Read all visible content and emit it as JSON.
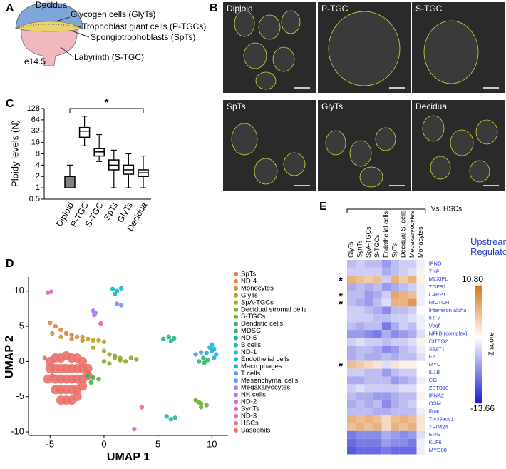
{
  "panel_labels": [
    "A",
    "B",
    "C",
    "D",
    "E"
  ],
  "diagram": {
    "labels": {
      "decidua": "Decidua",
      "glycogen": "Glycogen cells (GlyTs)",
      "giant": "Trophoblast giant cells (P-TGCs)",
      "spongio": "Spongiotrophoblasts (SpTs)",
      "labyrinth": "Labyrinth (S-TGC)",
      "stage": "e14.5"
    }
  },
  "micrographs": {
    "labels": [
      "Diploid",
      "P-TGC",
      "S-TGC",
      "SpTs",
      "GlyTs",
      "Decidua"
    ]
  },
  "chart_data": [
    {
      "type": "box",
      "ylabel": "Ploidy levels (N)",
      "categories": [
        "Diploid",
        "P-TGC",
        "S-TGC",
        "SpTs",
        "GlyTs",
        "Decidua"
      ],
      "whisker_low": [
        1,
        13,
        5,
        1,
        1,
        1
      ],
      "q1": [
        1,
        22,
        7,
        3,
        2.3,
        2
      ],
      "median": [
        2,
        32,
        9,
        4,
        3,
        2.5
      ],
      "q3": [
        2,
        40,
        11,
        5.5,
        4,
        3
      ],
      "whisker_high": [
        4,
        80,
        26,
        10,
        8,
        7
      ],
      "box_colors": [
        "#808080",
        "#ffffff",
        "#ffffff",
        "#ffffff",
        "#ffffff",
        "#ffffff"
      ],
      "ylim": [
        0.5,
        128
      ],
      "yticks": [
        0.5,
        1,
        2,
        4,
        8,
        16,
        32,
        64,
        128
      ],
      "log_scale": true,
      "annotation": "*"
    },
    {
      "type": "scatter",
      "xlabel": "UMAP 1",
      "ylabel": "UMAP 2",
      "xlim": [
        -7,
        11.5
      ],
      "ylim": [
        -10.5,
        12
      ],
      "xticks": [
        -5,
        0,
        5,
        10
      ],
      "yticks": [
        -10,
        -5,
        0,
        5,
        10
      ],
      "series": [
        {
          "name": "SpTs",
          "color": "#ea716b",
          "x": [
            -5,
            -4.5,
            -4,
            -3.5,
            -3,
            -2.5,
            -2,
            -5,
            -4.5,
            -4,
            -3.5,
            -3,
            -2.5,
            -2,
            -1.5,
            -5.2,
            -4.5,
            -4,
            -3.5,
            -3,
            -2.5,
            -2,
            -1.5,
            -4.5,
            -4,
            -3.5,
            -3,
            -2.5,
            -2,
            -4,
            -3.5,
            -3,
            -2.5
          ],
          "y": [
            0,
            0.5,
            0.5,
            0.8,
            0.5,
            0.5,
            0,
            -1,
            -1,
            -1,
            -1,
            -1,
            -1,
            -1,
            -1,
            -2.5,
            -2.5,
            -2.5,
            -2.5,
            -2.5,
            -2.5,
            -2.5,
            -2,
            -4,
            -4,
            -4,
            -4,
            -4,
            -3.5,
            -5.5,
            -5.5,
            -5.5,
            -5
          ]
        },
        {
          "name": "ND-4",
          "color": "#dc8438",
          "x": [
            -5,
            -4.5,
            -4,
            -3.5,
            -3,
            -2.5,
            -2
          ],
          "y": [
            5.5,
            5,
            4.5,
            4,
            3.8,
            3.5,
            3
          ]
        },
        {
          "name": "Monocytes",
          "color": "#cd952e",
          "x": [
            -4.8,
            -4,
            -3
          ],
          "y": [
            4,
            3.5,
            3.2
          ]
        },
        {
          "name": "GlyTs",
          "color": "#bb9f2a",
          "x": [
            -2,
            -1.5,
            -1,
            -0.5,
            0
          ],
          "y": [
            3.5,
            3.2,
            3,
            3,
            2.8
          ]
        },
        {
          "name": "SpA-TGCs",
          "color": "#a4a62a",
          "x": [
            -1,
            0,
            0.5,
            1,
            1.5
          ],
          "y": [
            2,
            1.5,
            1,
            0.8,
            0.5
          ]
        },
        {
          "name": "Decidual stromal cells",
          "color": "#8aab2e",
          "x": [
            0,
            0.5,
            1,
            1.5,
            2,
            2.5,
            3
          ],
          "y": [
            0,
            -0.3,
            0.5,
            0.2,
            0,
            0.5,
            0.3
          ]
        },
        {
          "name": "S-TGCs",
          "color": "#6bb031",
          "x": [
            8.5,
            9,
            9.5,
            9,
            8.8
          ],
          "y": [
            -5.5,
            -6,
            -6.2,
            -6.5,
            -5.8
          ]
        },
        {
          "name": "Dendritic cells",
          "color": "#40b54b",
          "x": [
            -1.5,
            -1,
            -0.5,
            -1.2
          ],
          "y": [
            -2,
            -2.3,
            -2.5,
            -3
          ]
        },
        {
          "name": "MDSC",
          "color": "#2db66e",
          "x": [
            8.8,
            9.2,
            9.6,
            9.3
          ],
          "y": [
            0,
            0.5,
            0.2,
            -0.2
          ]
        },
        {
          "name": "ND-5",
          "color": "#22b78b",
          "x": [
            5.5,
            6,
            6.5,
            6.2
          ],
          "y": [
            3.2,
            3.5,
            3.3,
            2.9
          ]
        },
        {
          "name": "B cells",
          "color": "#1fb9a4",
          "x": [
            5.8,
            6.2,
            6.6
          ],
          "y": [
            -7.8,
            -8.2,
            -8
          ]
        },
        {
          "name": "ND-1",
          "color": "#20b8bc",
          "x": [
            0.8,
            1.2,
            1.6,
            1
          ],
          "y": [
            10.3,
            10,
            10.4,
            9.6
          ]
        },
        {
          "name": "Endothelial cells",
          "color": "#1fb4d0",
          "x": [
            9.8,
            10,
            10.2
          ],
          "y": [
            2,
            2.4,
            1.8
          ]
        },
        {
          "name": "Macrophages",
          "color": "#2aa9e1",
          "x": [
            9.5,
            10,
            10.4,
            10.2
          ],
          "y": [
            1.2,
            1.5,
            1,
            0.5
          ]
        },
        {
          "name": "T cells",
          "color": "#4c9eea",
          "x": [
            8.5,
            9
          ],
          "y": [
            1,
            1.3
          ]
        },
        {
          "name": "Mesenchymal cells",
          "color": "#7e8ff0",
          "x": [
            1.2,
            1.6
          ],
          "y": [
            8.2,
            8
          ]
        },
        {
          "name": "Megakaryocytes",
          "color": "#a37ef2",
          "x": [
            -1,
            -0.8
          ],
          "y": [
            7.2,
            6.9
          ]
        },
        {
          "name": "NK cells",
          "color": "#c26ee8",
          "x": [
            -0.9
          ],
          "y": [
            6.6
          ]
        },
        {
          "name": "ND-2",
          "color": "#d964d6",
          "x": [
            -5.2,
            -4.9
          ],
          "y": [
            9.8,
            9.9
          ]
        },
        {
          "name": "SynTs",
          "color": "#e85fbd",
          "x": [
            2.8
          ],
          "y": [
            -9.6
          ]
        },
        {
          "name": "ND-3",
          "color": "#ef62a2",
          "x": [
            -0.3
          ],
          "y": [
            5.4
          ]
        },
        {
          "name": "HSCs",
          "color": "#ee6a88",
          "x": [
            3.5
          ],
          "y": [
            -6.5
          ]
        },
        {
          "name": "Basophils",
          "color": "#e96f72",
          "x": [
            -5.5,
            -4.8
          ],
          "y": [
            0.5,
            -2
          ]
        }
      ]
    },
    {
      "type": "heatmap",
      "title": "Upstream Regulators",
      "comparison": "Vs. HSCs",
      "columns": [
        "GlyTs",
        "SynTs",
        "SpA-TGCs",
        "S-TGCs",
        "Endothelial cells",
        "SpTs",
        "Decidual S. cells",
        "Megakaryocytes",
        "Monocytes"
      ],
      "rows": [
        "IFNG",
        "TNF",
        "MLXIPL",
        "TGFB1",
        "LARP1",
        "RICTOR",
        "Interferon alpha",
        "IRF7",
        "Vegf",
        "NFkB (complex)",
        "CITED2",
        "STAT1",
        "F2",
        "MYC",
        "IL1B",
        "CG",
        "ZBTB10",
        "IFNA2",
        "OSM",
        "Ifnar",
        "Ttc39aos1",
        "TRIM24",
        "ERG",
        "KLF6",
        "MYD88"
      ],
      "values": [
        [
          -4,
          -3,
          -4,
          -4,
          -6,
          -4,
          -3,
          -3,
          -1
        ],
        [
          -3,
          -3,
          -3,
          -3,
          -5,
          -4,
          -3,
          -2,
          1
        ],
        [
          6,
          5,
          4,
          5,
          -3,
          6,
          4,
          6,
          1
        ],
        [
          -5,
          -4,
          -5,
          -4,
          -6,
          -5,
          -4,
          -3,
          -1
        ],
        [
          -4,
          -4,
          -6,
          -5,
          -3,
          7,
          6,
          5,
          -1
        ],
        [
          -4,
          -5,
          -6,
          -4,
          -2,
          6,
          6,
          8,
          -1
        ],
        [
          -3,
          -3,
          -4,
          -5,
          -7,
          -4,
          -4,
          -3,
          0
        ],
        [
          -3,
          -3,
          -3,
          -4,
          -4,
          -3,
          -3,
          -2,
          -1
        ],
        [
          -4,
          -5,
          -4,
          -4,
          -8,
          -5,
          -3,
          -4,
          -1
        ],
        [
          -6,
          -6,
          -7,
          -8,
          -5,
          -7,
          -6,
          -5,
          -2
        ],
        [
          -3,
          -2,
          -3,
          -3,
          -4,
          -3,
          -3,
          -2,
          1
        ],
        [
          -5,
          -4,
          -4,
          -5,
          -7,
          -6,
          -4,
          -3,
          -1
        ],
        [
          -5,
          -4,
          -5,
          -5,
          -4,
          -5,
          -4,
          -4,
          -2
        ],
        [
          5,
          4,
          3,
          2,
          -2,
          2,
          1,
          1,
          0
        ],
        [
          -3,
          -3,
          -4,
          -4,
          -6,
          -4,
          -3,
          -3,
          0
        ],
        [
          -5,
          -5,
          -4,
          -4,
          -4,
          -6,
          -5,
          -4,
          -1
        ],
        [
          -3,
          -2,
          -3,
          -3,
          -3,
          -3,
          -2,
          -2,
          0
        ],
        [
          -4,
          -5,
          -5,
          -6,
          -6,
          -5,
          -4,
          -4,
          1
        ],
        [
          -5,
          -4,
          -5,
          -4,
          -7,
          -5,
          -4,
          -3,
          0
        ],
        [
          -4,
          -4,
          -4,
          -5,
          -5,
          -4,
          -4,
          -4,
          -1
        ],
        [
          6,
          5,
          6,
          5,
          3,
          5,
          6,
          5,
          2
        ],
        [
          5,
          6,
          5,
          6,
          3,
          6,
          5,
          6,
          2
        ],
        [
          -8,
          -7,
          -7,
          -7,
          -5,
          -6,
          -7,
          -6,
          -2
        ],
        [
          -9,
          -8,
          -8,
          -8,
          -6,
          -7,
          -7,
          -8,
          -1
        ],
        [
          -10,
          -9,
          -9,
          -9,
          -8,
          -9,
          -9,
          -9,
          -1
        ]
      ],
      "row_marks": [
        null,
        null,
        "*",
        null,
        "*",
        "*",
        null,
        null,
        null,
        null,
        null,
        null,
        null,
        "*",
        null,
        null,
        null,
        null,
        null,
        null,
        null,
        null,
        null,
        null,
        null
      ],
      "colorbar_label": "Z score",
      "zlim": [
        -13.66,
        10.8
      ],
      "colorbar_ticks": [
        {
          "value": 10.8,
          "label": "10.80"
        },
        -13.66
      ],
      "colors": [
        "#1c1cd4",
        "#ffffff",
        "#d8741c"
      ]
    }
  ]
}
